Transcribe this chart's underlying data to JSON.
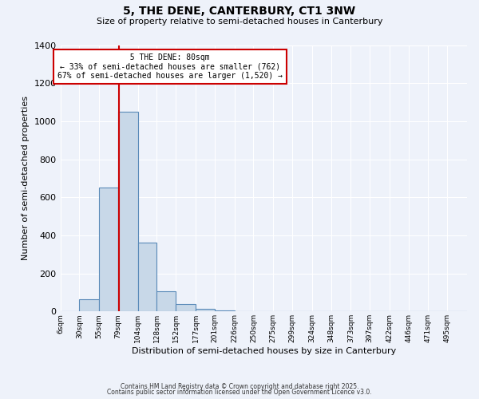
{
  "title": "5, THE DENE, CANTERBURY, CT1 3NW",
  "subtitle": "Size of property relative to semi-detached houses in Canterbury",
  "xlabel": "Distribution of semi-detached houses by size in Canterbury",
  "ylabel": "Number of semi-detached properties",
  "bar_labels": [
    "6sqm",
    "30sqm",
    "55sqm",
    "79sqm",
    "104sqm",
    "128sqm",
    "152sqm",
    "177sqm",
    "201sqm",
    "226sqm",
    "250sqm",
    "275sqm",
    "299sqm",
    "324sqm",
    "348sqm",
    "373sqm",
    "397sqm",
    "422sqm",
    "446sqm",
    "471sqm",
    "495sqm"
  ],
  "bar_values": [
    0,
    65,
    650,
    1050,
    360,
    105,
    40,
    15,
    5,
    0,
    0,
    0,
    0,
    0,
    0,
    0,
    0,
    0,
    0,
    0,
    0
  ],
  "bin_edges": [
    6,
    30,
    55,
    79,
    104,
    128,
    152,
    177,
    201,
    226,
    250,
    275,
    299,
    324,
    348,
    373,
    397,
    422,
    446,
    471,
    495,
    520
  ],
  "property_size": 80,
  "property_label": "5 THE DENE: 80sqm",
  "pct_smaller": 33,
  "pct_larger": 67,
  "n_smaller": 762,
  "n_larger": 1520,
  "ylim": [
    0,
    1400
  ],
  "yticks": [
    0,
    200,
    400,
    600,
    800,
    1000,
    1200,
    1400
  ],
  "bar_color": "#c8d8e8",
  "bar_edge_color": "#5a8ab8",
  "vline_color": "#cc0000",
  "annotation_box_edge_color": "#cc0000",
  "background_color": "#eef2fa",
  "grid_color": "#ffffff",
  "footnote1": "Contains HM Land Registry data © Crown copyright and database right 2025.",
  "footnote2": "Contains public sector information licensed under the Open Government Licence v3.0."
}
